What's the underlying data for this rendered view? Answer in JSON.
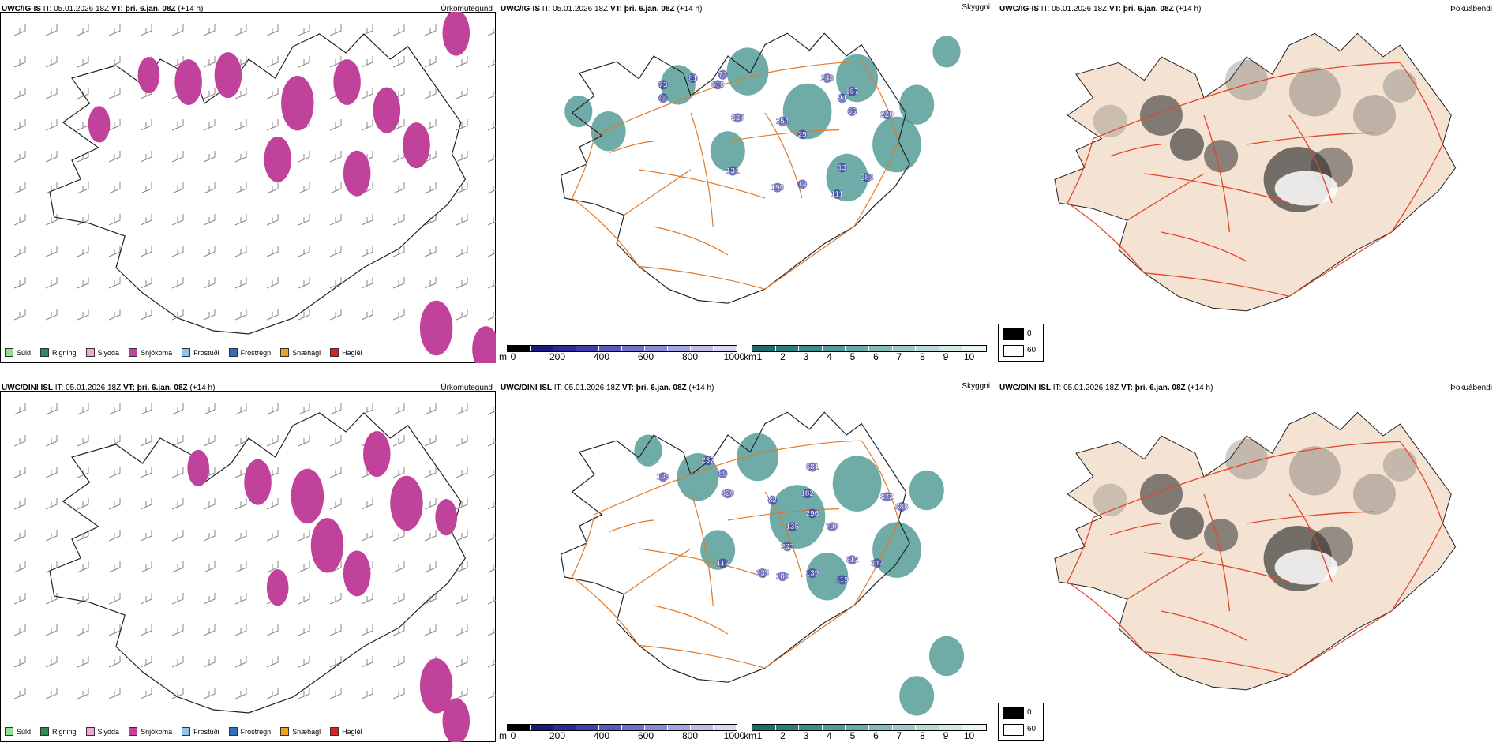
{
  "rows": [
    {
      "model": "UWC/IG-IS",
      "run": "05.01.2026 18Z",
      "valid": "þri. 6.jan. 08Z",
      "lead": "(+14 h)",
      "cloud_heights": [
        "73",
        "81",
        "73",
        "610",
        "248",
        "44",
        "335",
        "157",
        "94",
        "65",
        "254",
        "220",
        "29",
        "131",
        "196",
        "14",
        "111",
        "384",
        "13"
      ]
    },
    {
      "model": "UWC/DINI ISL",
      "run": "05.01.2026 18Z",
      "valid": "þri. 6.jan. 08Z",
      "lead": "(+14 h)",
      "cloud_heights": [
        "681",
        "188",
        "237",
        "85",
        "82",
        "820",
        "182",
        "296",
        "135",
        "790",
        "233",
        "113",
        "335",
        "186",
        "139",
        "212",
        "119",
        "347",
        "372",
        "886"
      ]
    }
  ],
  "labels": {
    "it_prefix": "IT:",
    "vt_prefix": "VT:",
    "panel_precip": "Úrkomutegund",
    "panel_cloud": "Skyggni",
    "panel_fog": "Þokuábendi"
  },
  "precip_legend": [
    {
      "label": "Súld",
      "color": "#8ee08e"
    },
    {
      "label": "Rigning",
      "color": "#2e8b57"
    },
    {
      "label": "Slydda",
      "color": "#f4a6d7"
    },
    {
      "label": "Snjókoma",
      "color": "#c0429b"
    },
    {
      "label": "Frostúði",
      "color": "#8fc3ef"
    },
    {
      "label": "Frostregn",
      "color": "#2f6fc0"
    },
    {
      "label": "Snæhagl",
      "color": "#f0a020"
    },
    {
      "label": "Haglél",
      "color": "#e02020"
    }
  ],
  "cloud_base_bar": {
    "unit": "m",
    "ticks": [
      "0",
      "200",
      "400",
      "600",
      "800",
      "1000"
    ],
    "colors": [
      "#000000",
      "#1a1a7a",
      "#2a2a9a",
      "#3f3fb0",
      "#5858c0",
      "#7070cc",
      "#8a8ad8",
      "#a4a4e0",
      "#bdbde8",
      "#d8d8f2"
    ]
  },
  "visibility_bar": {
    "unit": "km",
    "ticks": [
      "1",
      "2",
      "3",
      "4",
      "5",
      "6",
      "7",
      "8",
      "9",
      "10"
    ],
    "colors": [
      "#1e6e6e",
      "#2a7f7f",
      "#3a8f8c",
      "#4f9d9a",
      "#66aca9",
      "#80bcb9",
      "#9bcac7",
      "#b6d9d6",
      "#d0e7e5",
      "#eaf4f3"
    ]
  },
  "fog_legend": [
    {
      "value": "0",
      "color": "#000000"
    },
    {
      "value": "60",
      "color": "#ffffff"
    }
  ],
  "colors": {
    "snow": "#c0429b",
    "cloud": "#3f8f8a",
    "road": "#e07a2a",
    "fog_land": "#f4e2d2",
    "fog_road": "#e0472a"
  }
}
